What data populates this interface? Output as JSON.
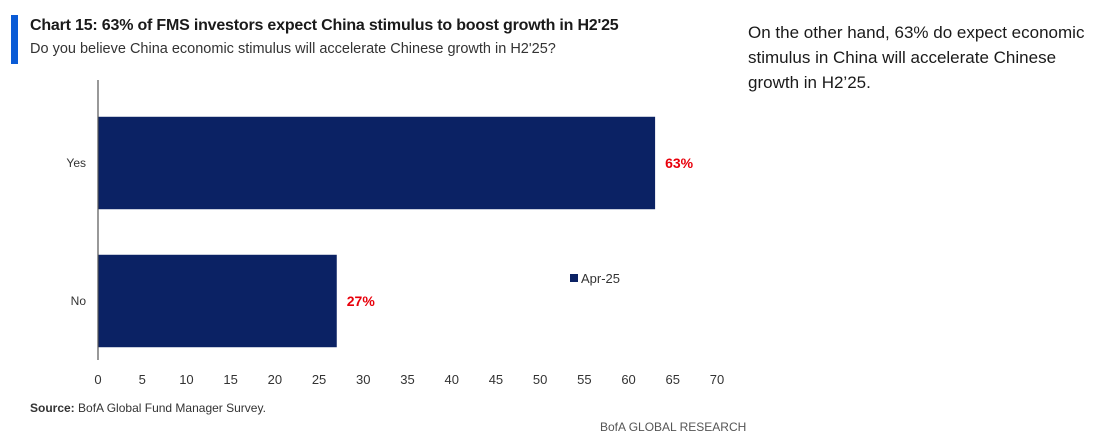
{
  "header": {
    "title": "Chart 15: 63% of FMS investors expect China stimulus to boost growth in H2'25",
    "subtitle": "Do you believe China economic stimulus will accelerate Chinese growth in H2'25?"
  },
  "footer": {
    "source_label": "Source:",
    "source_text": "BofA Global Fund Manager Survey.",
    "brand": "BofA GLOBAL RESEARCH"
  },
  "side_text": "On the other hand, 63% do expect economic stimulus in China will accelerate Chinese growth in H2’25.",
  "colors": {
    "accent": "#0a5bd6",
    "bar": "#0b2264",
    "data_label": "#e8000b",
    "axis": "#555555"
  },
  "chart_data": {
    "type": "bar",
    "orientation": "horizontal",
    "categories": [
      "Yes",
      "No"
    ],
    "series": [
      {
        "name": "Apr-25",
        "values": [
          63,
          27
        ]
      }
    ],
    "data_labels": [
      "63%",
      "27%"
    ],
    "xlim": [
      0,
      70
    ],
    "x_ticks": [
      0,
      5,
      10,
      15,
      20,
      25,
      30,
      35,
      40,
      45,
      50,
      55,
      60,
      65,
      70
    ],
    "xlabel": "",
    "ylabel": "",
    "grid": false,
    "legend_position": "right"
  }
}
